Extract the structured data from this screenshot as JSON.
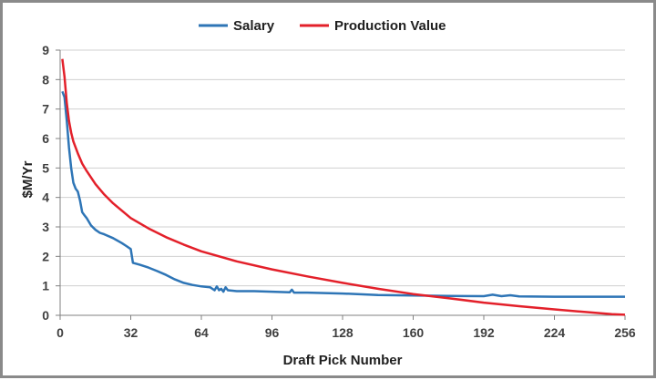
{
  "chart_data": {
    "type": "line",
    "xlabel": "Draft Pick Number",
    "ylabel": "$M/Yr",
    "xlim": [
      0,
      256
    ],
    "ylim": [
      0,
      9
    ],
    "x_ticks": [
      0,
      32,
      64,
      96,
      128,
      160,
      192,
      224,
      256
    ],
    "y_ticks": [
      0,
      1,
      2,
      3,
      4,
      5,
      6,
      7,
      8,
      9
    ],
    "grid": "horizontal",
    "legend_position": "top",
    "series": [
      {
        "name": "Salary",
        "color": "#2e75b6",
        "x": [
          1,
          2,
          3,
          4,
          5,
          6,
          7,
          8,
          9,
          10,
          11,
          12,
          14,
          16,
          18,
          20,
          24,
          28,
          30,
          32,
          33,
          36,
          40,
          44,
          48,
          52,
          56,
          60,
          64,
          68,
          70,
          71,
          72,
          73,
          74,
          75,
          76,
          80,
          88,
          96,
          104,
          105,
          106,
          112,
          128,
          144,
          160,
          176,
          192,
          196,
          200,
          204,
          208,
          224,
          240,
          256
        ],
        "y": [
          7.6,
          7.4,
          6.6,
          5.7,
          5.0,
          4.5,
          4.3,
          4.2,
          3.9,
          3.5,
          3.4,
          3.3,
          3.05,
          2.9,
          2.8,
          2.75,
          2.62,
          2.45,
          2.35,
          2.25,
          1.78,
          1.72,
          1.62,
          1.5,
          1.37,
          1.22,
          1.1,
          1.03,
          0.98,
          0.95,
          0.85,
          0.98,
          0.85,
          0.9,
          0.8,
          0.95,
          0.85,
          0.82,
          0.82,
          0.8,
          0.78,
          0.87,
          0.77,
          0.77,
          0.74,
          0.69,
          0.67,
          0.66,
          0.65,
          0.7,
          0.65,
          0.68,
          0.64,
          0.63,
          0.63,
          0.63
        ]
      },
      {
        "name": "Production Value",
        "color": "#e3202a",
        "x": [
          1,
          2,
          3,
          4,
          5,
          6,
          8,
          10,
          12,
          16,
          20,
          24,
          28,
          32,
          40,
          48,
          56,
          64,
          80,
          96,
          112,
          128,
          144,
          160,
          176,
          192,
          208,
          224,
          240,
          250,
          256
        ],
        "y": [
          8.7,
          8.1,
          7.2,
          6.6,
          6.2,
          5.9,
          5.5,
          5.15,
          4.9,
          4.45,
          4.1,
          3.8,
          3.55,
          3.3,
          2.95,
          2.65,
          2.4,
          2.17,
          1.83,
          1.56,
          1.32,
          1.1,
          0.9,
          0.72,
          0.58,
          0.43,
          0.31,
          0.2,
          0.1,
          0.04,
          0.02
        ]
      }
    ]
  }
}
